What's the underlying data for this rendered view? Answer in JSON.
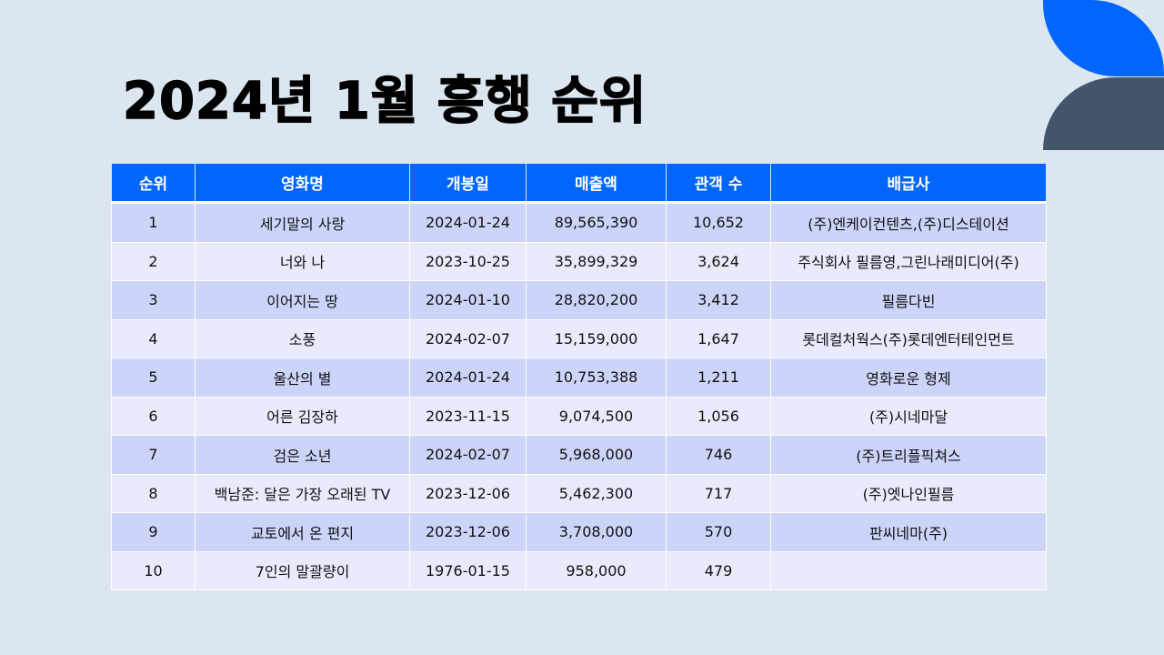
{
  "title": "2024년 1월 흥행 순위",
  "colors": {
    "header_bg": "#0066ff",
    "row_odd": "#cdd4fa",
    "row_even": "#e8ebfc",
    "deco_top": "#0066ff",
    "deco_bottom": "#44546a"
  },
  "table": {
    "headers": [
      "순위",
      "영화명",
      "개봉일",
      "매출액",
      "관객 수",
      "배급사"
    ],
    "rows": [
      [
        "1",
        "세기말의 사랑",
        "2024-01-24",
        "89,565,390",
        "10,652",
        "(주)엔케이컨텐츠,(주)디스테이션"
      ],
      [
        "2",
        "너와 나",
        "2023-10-25",
        "35,899,329",
        "3,624",
        "주식회사 필름영,그린나래미디어(주)"
      ],
      [
        "3",
        "이어지는 땅",
        "2024-01-10",
        "28,820,200",
        "3,412",
        "필름다빈"
      ],
      [
        "4",
        "소풍",
        "2024-02-07",
        "15,159,000",
        "1,647",
        "롯데컬처웍스(주)롯데엔터테인먼트"
      ],
      [
        "5",
        "울산의 별",
        "2024-01-24",
        "10,753,388",
        "1,211",
        "영화로운 형제"
      ],
      [
        "6",
        "어른 김장하",
        "2023-11-15",
        "9,074,500",
        "1,056",
        "(주)시네마달"
      ],
      [
        "7",
        "검은 소년",
        "2024-02-07",
        "5,968,000",
        "746",
        "(주)트리플픽쳐스"
      ],
      [
        "8",
        "백남준: 달은 가장 오래된 TV",
        "2023-12-06",
        "5,462,300",
        "717",
        "(주)엣나인필름"
      ],
      [
        "9",
        "교토에서 온 편지",
        "2023-12-06",
        "3,708,000",
        "570",
        "판씨네마(주)"
      ],
      [
        "10",
        "7인의 말괄량이",
        "1976-01-15",
        "958,000",
        "479",
        ""
      ]
    ]
  }
}
